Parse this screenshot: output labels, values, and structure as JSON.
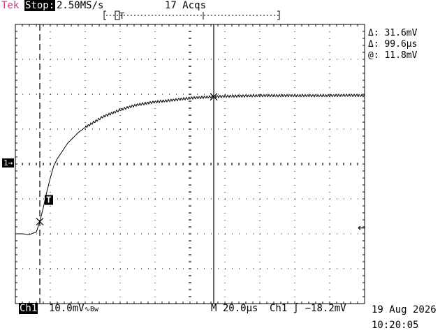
{
  "header": {
    "brand": "Tek",
    "state": "Stop:",
    "sample_rate": "2.50MS/s",
    "acquisitions": "17 Acqs"
  },
  "measurements": [
    {
      "label": "Δ:",
      "value": "31.6mV"
    },
    {
      "label": "Δ:",
      "value": "99.6μs"
    },
    {
      "label": "@:",
      "value": "11.8mV"
    }
  ],
  "channel_marker": "1→",
  "trigger_marker": "T",
  "trigger_level_arrow": "←",
  "footer": {
    "channel": "Ch1",
    "scale": "10.0mV",
    "coupling": "∿Bw",
    "timebase": "M 20.0μs",
    "trigger_source": "Ch1",
    "trigger_slope": "∫",
    "trigger_level": "−18.2mV",
    "date": "19 Aug 2026",
    "time": "10:20:05"
  },
  "colors": {
    "brand": "#d9338c",
    "trace": "#000000",
    "grid": "#000000"
  },
  "chart_data": {
    "type": "line",
    "title": "",
    "xlabel": "",
    "ylabel": "",
    "x_unit": "μs",
    "y_unit": "mV",
    "x_per_div": 20.0,
    "y_per_div": 10.0,
    "xlim": [
      0,
      200
    ],
    "ylim": [
      -40,
      40
    ],
    "grid": true,
    "series": [
      {
        "x": [
          0,
          4,
          8,
          12,
          14,
          16,
          18,
          20,
          22,
          24,
          26,
          28,
          30,
          32,
          36,
          40,
          45,
          50,
          55,
          60,
          65,
          70,
          80,
          90,
          100,
          110,
          120,
          130,
          140,
          150,
          160,
          170,
          180,
          190,
          200
        ],
        "y": [
          -20.0,
          -20.0,
          -20.2,
          -19.5,
          -16.5,
          -12.5,
          -8.0,
          -4.0,
          -0.5,
          1.5,
          3.0,
          4.5,
          6.0,
          7.0,
          9.0,
          10.5,
          12.0,
          13.5,
          14.5,
          15.5,
          16.3,
          17.0,
          17.8,
          18.3,
          18.9,
          19.2,
          19.4,
          19.5,
          19.6,
          19.6,
          19.6,
          19.6,
          19.6,
          19.7,
          19.6
        ]
      }
    ],
    "cursors": {
      "x1": 14,
      "x2": 113.6
    }
  }
}
